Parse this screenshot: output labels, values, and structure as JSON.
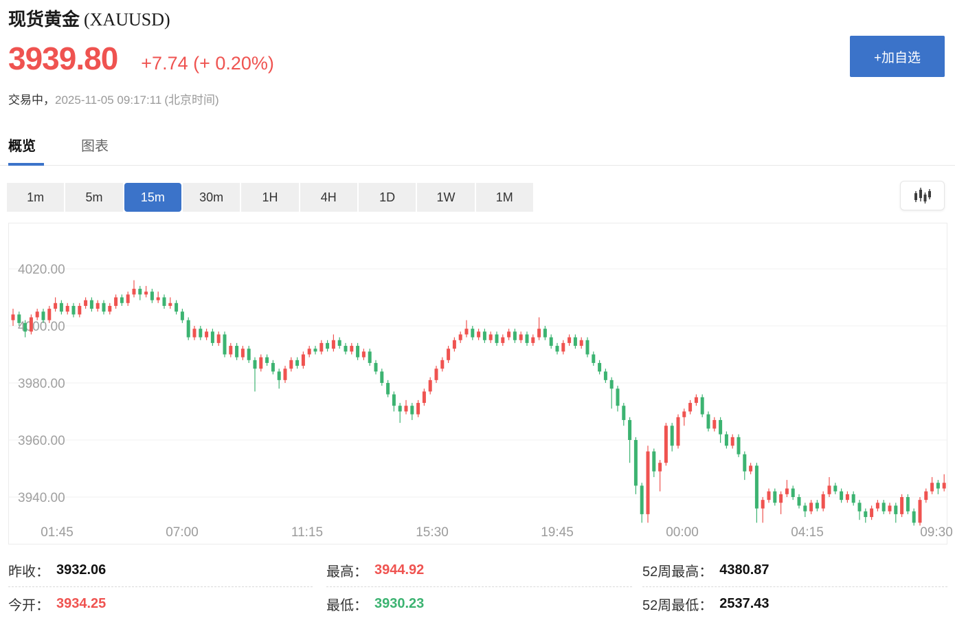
{
  "header": {
    "title_cn": "现货黄金",
    "title_symbol": "(XAUUSD)",
    "price": "3939.80",
    "change": "+7.74 (+ 0.20%)",
    "status_label": "交易中，",
    "timestamp": "2025-11-05 09:17:11",
    "timezone": "(北京时间)",
    "watchlist_button": "+加自选"
  },
  "tabs": [
    {
      "label": "概览",
      "active": true
    },
    {
      "label": "图表",
      "active": false
    }
  ],
  "intervals": [
    {
      "label": "1m",
      "active": false
    },
    {
      "label": "5m",
      "active": false
    },
    {
      "label": "15m",
      "active": true
    },
    {
      "label": "30m",
      "active": false
    },
    {
      "label": "1H",
      "active": false
    },
    {
      "label": "4H",
      "active": false
    },
    {
      "label": "1D",
      "active": false
    },
    {
      "label": "1W",
      "active": false
    },
    {
      "label": "1M",
      "active": false
    }
  ],
  "colors": {
    "red": "#ef5350",
    "green": "#3cb371",
    "blue": "#3b73c9",
    "grid": "#f0f0f0",
    "axis_text": "#a0a0a0"
  },
  "stats": {
    "rows": [
      {
        "label": "昨收：",
        "value": "3932.06",
        "color": "dark"
      },
      {
        "label": "今开：",
        "value": "3934.25",
        "color": "red"
      },
      {
        "label": "最高：",
        "value": "3944.92",
        "color": "red"
      },
      {
        "label": "最低：",
        "value": "3930.23",
        "color": "green"
      },
      {
        "label": "52周最高：",
        "value": "4380.87",
        "color": "dark"
      },
      {
        "label": "52周最低：",
        "value": "2537.43",
        "color": "dark"
      }
    ]
  },
  "chart_data": {
    "type": "candlestick",
    "interval": "15m",
    "up_color": "#ef5350",
    "down_color": "#3cb371",
    "grid": true,
    "y_ticks": [
      "4020.00",
      "4000.00",
      "3980.00",
      "3960.00",
      "3940.00"
    ],
    "y_tick_values": [
      4020,
      4000,
      3980,
      3960,
      3940
    ],
    "ylim": [
      3925,
      4036
    ],
    "x_ticks": [
      {
        "label": "01:45",
        "x": 70
      },
      {
        "label": "07:00",
        "x": 252
      },
      {
        "label": "11:15",
        "x": 434
      },
      {
        "label": "15:30",
        "x": 616
      },
      {
        "label": "19:45",
        "x": 798
      },
      {
        "label": "00:00",
        "x": 980
      },
      {
        "label": "04:15",
        "x": 1162
      },
      {
        "label": "09:30",
        "x": 1350
      }
    ],
    "candles_format": [
      "open",
      "high",
      "low",
      "close"
    ],
    "candles": [
      [
        4002,
        4006,
        4000,
        4004
      ],
      [
        4004,
        4005,
        4000,
        4001
      ],
      [
        4001,
        4002,
        3996,
        3998
      ],
      [
        3998,
        4004,
        3997,
        4003
      ],
      [
        4003,
        4006,
        4002,
        4005
      ],
      [
        4005,
        4006,
        4001,
        4002
      ],
      [
        4002,
        4007,
        4001,
        4006
      ],
      [
        4006,
        4010,
        4005,
        4008
      ],
      [
        4008,
        4009,
        4004,
        4005
      ],
      [
        4005,
        4008,
        4004,
        4007
      ],
      [
        4007,
        4008,
        4003,
        4004
      ],
      [
        4004,
        4008,
        4003,
        4007
      ],
      [
        4007,
        4010,
        4006,
        4009
      ],
      [
        4009,
        4010,
        4005,
        4006
      ],
      [
        4006,
        4009,
        4005,
        4008
      ],
      [
        4008,
        4009,
        4004,
        4005
      ],
      [
        4005,
        4008,
        4004,
        4007
      ],
      [
        4007,
        4011,
        4006,
        4010
      ],
      [
        4010,
        4011,
        4007,
        4008
      ],
      [
        4008,
        4012,
        4007,
        4011
      ],
      [
        4011,
        4016,
        4010,
        4013
      ],
      [
        4013,
        4014,
        4009,
        4011
      ],
      [
        4011,
        4014,
        4010,
        4012
      ],
      [
        4012,
        4013,
        4008,
        4009
      ],
      [
        4009,
        4012,
        4008,
        4010
      ],
      [
        4010,
        4011,
        4006,
        4007
      ],
      [
        4007,
        4010,
        4006,
        4008
      ],
      [
        4008,
        4009,
        4004,
        4005
      ],
      [
        4005,
        4006,
        4001,
        4002
      ],
      [
        4002,
        4003,
        3995,
        3996
      ],
      [
        3996,
        4000,
        3995,
        3999
      ],
      [
        3999,
        4000,
        3995,
        3996
      ],
      [
        3996,
        3999,
        3995,
        3998
      ],
      [
        3998,
        3999,
        3993,
        3994
      ],
      [
        3994,
        3998,
        3993,
        3997
      ],
      [
        3997,
        3998,
        3989,
        3990
      ],
      [
        3990,
        3994,
        3989,
        3993
      ],
      [
        3993,
        3994,
        3988,
        3989
      ],
      [
        3989,
        3993,
        3988,
        3992
      ],
      [
        3992,
        3993,
        3987,
        3988
      ],
      [
        3988,
        3989,
        3977,
        3985
      ],
      [
        3985,
        3990,
        3984,
        3989
      ],
      [
        3989,
        3990,
        3986,
        3987
      ],
      [
        3987,
        3988,
        3983,
        3984
      ],
      [
        3984,
        3985,
        3978,
        3981
      ],
      [
        3981,
        3986,
        3980,
        3985
      ],
      [
        3985,
        3989,
        3984,
        3988
      ],
      [
        3988,
        3989,
        3985,
        3986
      ],
      [
        3986,
        3991,
        3985,
        3990
      ],
      [
        3990,
        3993,
        3989,
        3992
      ],
      [
        3992,
        3993,
        3990,
        3991
      ],
      [
        3991,
        3995,
        3990,
        3994
      ],
      [
        3994,
        3995,
        3991,
        3992
      ],
      [
        3992,
        3997,
        3991,
        3995
      ],
      [
        3995,
        3996,
        3992,
        3993
      ],
      [
        3993,
        3994,
        3990,
        3991
      ],
      [
        3991,
        3994,
        3990,
        3993
      ],
      [
        3993,
        3994,
        3988,
        3989
      ],
      [
        3989,
        3992,
        3988,
        3991
      ],
      [
        3991,
        3992,
        3986,
        3987
      ],
      [
        3987,
        3988,
        3983,
        3984
      ],
      [
        3984,
        3985,
        3979,
        3980
      ],
      [
        3980,
        3981,
        3975,
        3976
      ],
      [
        3976,
        3977,
        3970,
        3972
      ],
      [
        3972,
        3973,
        3966,
        3970
      ],
      [
        3970,
        3974,
        3969,
        3972
      ],
      [
        3972,
        3973,
        3967,
        3969
      ],
      [
        3969,
        3974,
        3968,
        3973
      ],
      [
        3973,
        3978,
        3972,
        3977
      ],
      [
        3977,
        3982,
        3976,
        3981
      ],
      [
        3981,
        3986,
        3980,
        3985
      ],
      [
        3985,
        3989,
        3984,
        3988
      ],
      [
        3988,
        3993,
        3987,
        3992
      ],
      [
        3992,
        3996,
        3991,
        3995
      ],
      [
        3995,
        3998,
        3994,
        3997
      ],
      [
        3997,
        4002,
        3996,
        3999
      ],
      [
        3999,
        4000,
        3995,
        3996
      ],
      [
        3996,
        3999,
        3995,
        3998
      ],
      [
        3998,
        3999,
        3994,
        3995
      ],
      [
        3995,
        3998,
        3994,
        3997
      ],
      [
        3997,
        3998,
        3993,
        3994
      ],
      [
        3994,
        3997,
        3993,
        3996
      ],
      [
        3996,
        3999,
        3995,
        3998
      ],
      [
        3998,
        3999,
        3994,
        3995
      ],
      [
        3995,
        3998,
        3994,
        3997
      ],
      [
        3997,
        3998,
        3993,
        3994
      ],
      [
        3994,
        3997,
        3993,
        3996
      ],
      [
        3996,
        4003,
        3995,
        3999
      ],
      [
        3999,
        4000,
        3995,
        3996
      ],
      [
        3996,
        3997,
        3992,
        3993
      ],
      [
        3993,
        3994,
        3990,
        3991
      ],
      [
        3991,
        3995,
        3990,
        3994
      ],
      [
        3994,
        3997,
        3993,
        3996
      ],
      [
        3996,
        3997,
        3992,
        3993
      ],
      [
        3993,
        3996,
        3992,
        3995
      ],
      [
        3995,
        3996,
        3989,
        3990
      ],
      [
        3990,
        3991,
        3986,
        3987
      ],
      [
        3987,
        3988,
        3983,
        3984
      ],
      [
        3984,
        3985,
        3980,
        3981
      ],
      [
        3981,
        3982,
        3971,
        3978
      ],
      [
        3978,
        3979,
        3970,
        3972
      ],
      [
        3972,
        3973,
        3965,
        3967
      ],
      [
        3967,
        3968,
        3952,
        3960
      ],
      [
        3960,
        3961,
        3941,
        3944
      ],
      [
        3944,
        3945,
        3931,
        3934
      ],
      [
        3934,
        3958,
        3931,
        3956
      ],
      [
        3956,
        3957,
        3947,
        3949
      ],
      [
        3949,
        3953,
        3942,
        3952
      ],
      [
        3952,
        3966,
        3951,
        3965
      ],
      [
        3965,
        3966,
        3956,
        3958
      ],
      [
        3958,
        3969,
        3957,
        3968
      ],
      [
        3968,
        3971,
        3965,
        3970
      ],
      [
        3970,
        3974,
        3969,
        3973
      ],
      [
        3973,
        3976,
        3972,
        3975
      ],
      [
        3975,
        3976,
        3968,
        3969
      ],
      [
        3969,
        3970,
        3963,
        3964
      ],
      [
        3964,
        3968,
        3963,
        3967
      ],
      [
        3967,
        3968,
        3959,
        3962
      ],
      [
        3962,
        3963,
        3957,
        3958
      ],
      [
        3958,
        3962,
        3957,
        3961
      ],
      [
        3961,
        3962,
        3954,
        3955
      ],
      [
        3955,
        3956,
        3946,
        3949
      ],
      [
        3949,
        3952,
        3948,
        3951
      ],
      [
        3951,
        3952,
        3931,
        3936
      ],
      [
        3936,
        3940,
        3931,
        3939
      ],
      [
        3939,
        3943,
        3938,
        3942
      ],
      [
        3942,
        3943,
        3937,
        3938
      ],
      [
        3938,
        3942,
        3934,
        3941
      ],
      [
        3941,
        3946,
        3940,
        3943
      ],
      [
        3943,
        3944,
        3939,
        3940
      ],
      [
        3940,
        3941,
        3936,
        3937
      ],
      [
        3937,
        3938,
        3933,
        3935
      ],
      [
        3935,
        3939,
        3934,
        3938
      ],
      [
        3938,
        3939,
        3935,
        3936
      ],
      [
        3936,
        3942,
        3935,
        3941
      ],
      [
        3941,
        3947,
        3940,
        3944
      ],
      [
        3944,
        3945,
        3941,
        3942
      ],
      [
        3942,
        3943,
        3938,
        3939
      ],
      [
        3939,
        3942,
        3938,
        3941
      ],
      [
        3941,
        3942,
        3937,
        3938
      ],
      [
        3938,
        3939,
        3932,
        3935
      ],
      [
        3935,
        3936,
        3931,
        3933
      ],
      [
        3933,
        3937,
        3932,
        3936
      ],
      [
        3936,
        3939,
        3935,
        3938
      ],
      [
        3938,
        3939,
        3934,
        3935
      ],
      [
        3935,
        3938,
        3934,
        3937
      ],
      [
        3937,
        3938,
        3931,
        3934
      ],
      [
        3934,
        3941,
        3933,
        3940
      ],
      [
        3940,
        3941,
        3934,
        3935
      ],
      [
        3935,
        3936,
        3930,
        3931
      ],
      [
        3931,
        3940,
        3930,
        3939
      ],
      [
        3939,
        3943,
        3938,
        3942
      ],
      [
        3942,
        3947,
        3941,
        3945
      ],
      [
        3945,
        3946,
        3941,
        3943
      ],
      [
        3943,
        3948,
        3942,
        3945
      ]
    ]
  }
}
